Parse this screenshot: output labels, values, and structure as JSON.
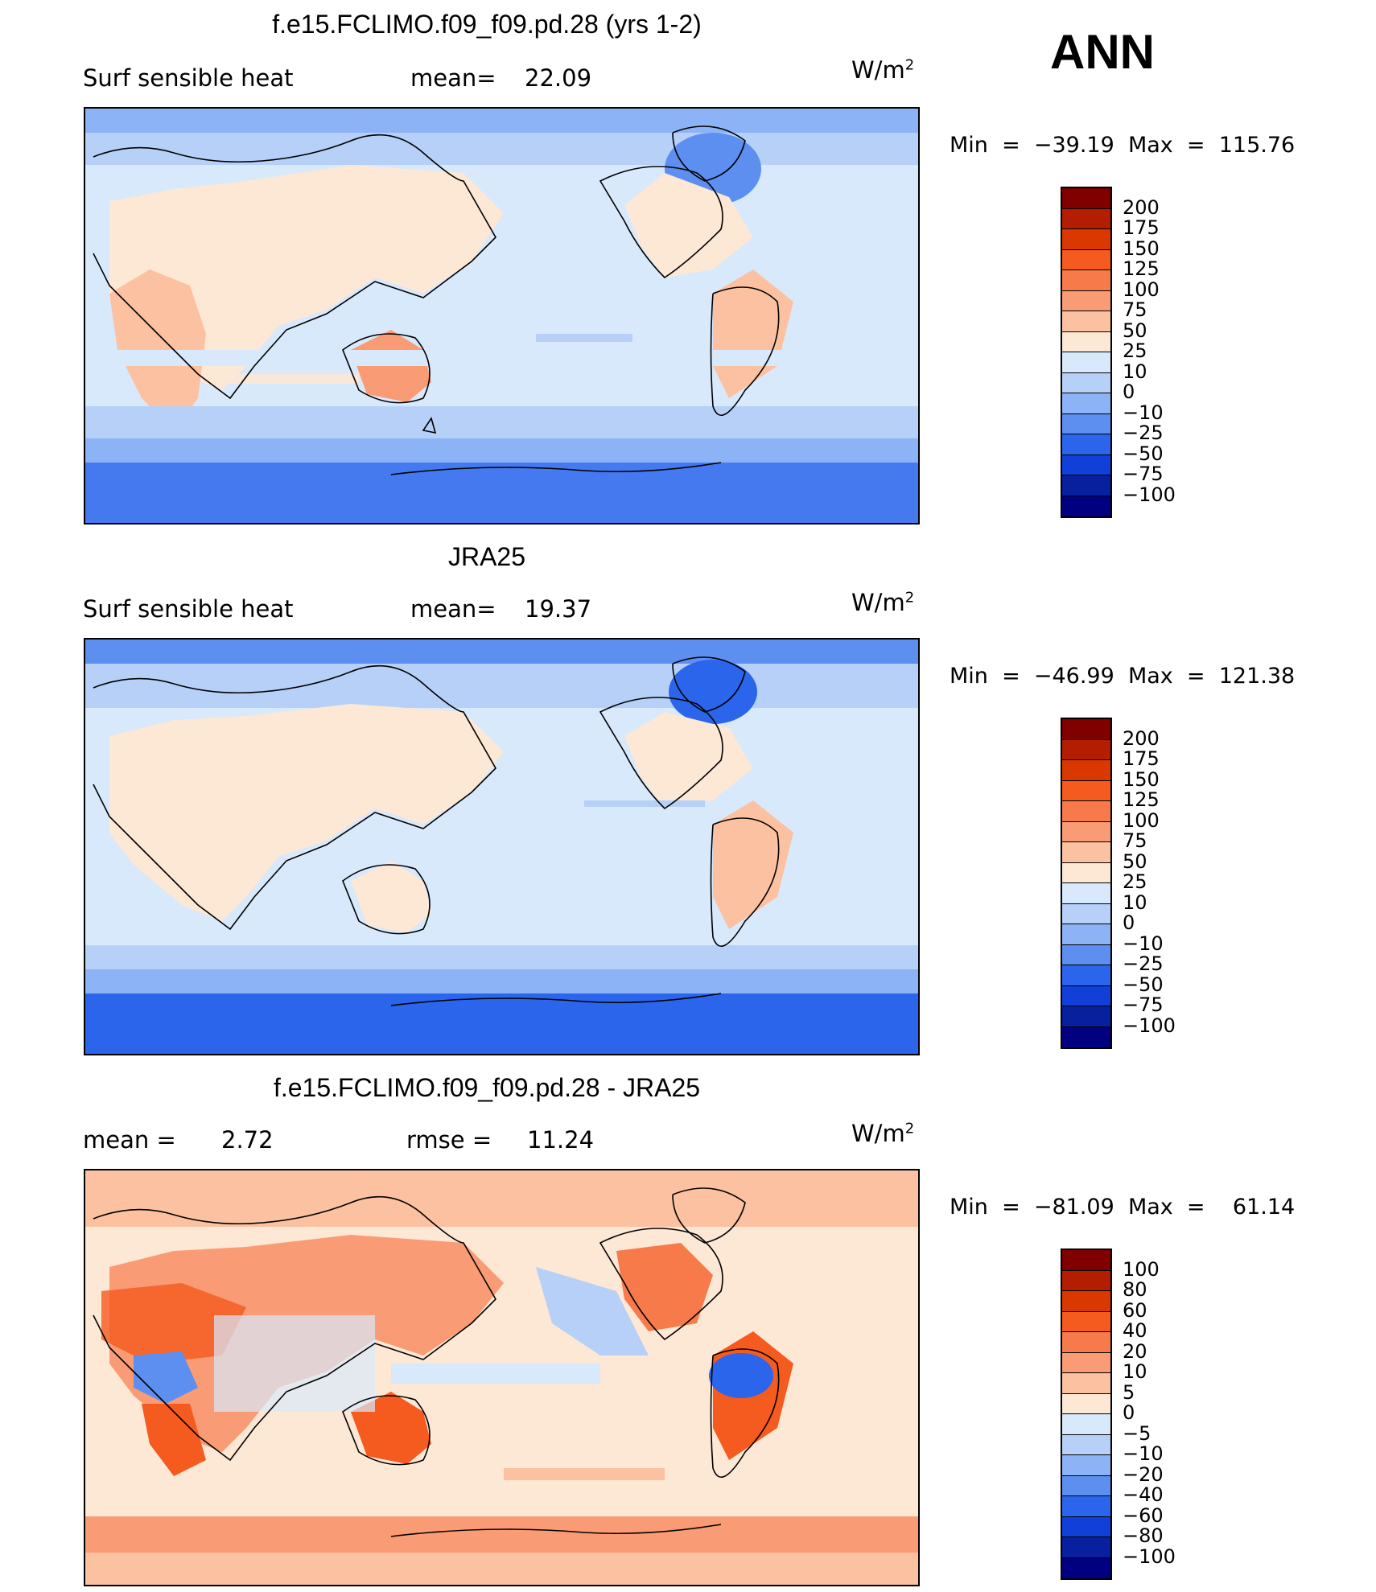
{
  "season": "ANN",
  "panels": [
    {
      "title": "f.e15.FCLIMO.f09_f09.pd.28 (yrs 1-2)",
      "left_label": "Surf  sensible  heat",
      "stat_label": "mean=",
      "stat_value": "22.09",
      "units_base": "W/m",
      "units_exp": "2",
      "minmax": "Min  =  −39.19  Max  =  115.76",
      "colorbar_labels": [
        "200",
        "175",
        "150",
        "125",
        "100",
        "75",
        "50",
        "25",
        "10",
        "0",
        "−10",
        "−25",
        "−50",
        "−75",
        "−100"
      ],
      "colorbar_colors": [
        "#800000",
        "#b31e00",
        "#d93800",
        "#f55a1e",
        "#f77b4a",
        "#f99b75",
        "#fbc1a0",
        "#fde7d5",
        "#d8e9fb",
        "#b6d0f8",
        "#8cb3f5",
        "#5c8ff0",
        "#2a65ec",
        "#1140d8",
        "#08209e",
        "#000080"
      ]
    },
    {
      "title": "JRA25",
      "left_label": "Surf  sensible  heat",
      "stat_label": "mean=",
      "stat_value": "19.37",
      "units_base": "W/m",
      "units_exp": "2",
      "minmax": "Min  =  −46.99  Max  =  121.38",
      "colorbar_labels": [
        "200",
        "175",
        "150",
        "125",
        "100",
        "75",
        "50",
        "25",
        "10",
        "0",
        "−10",
        "−25",
        "−50",
        "−75",
        "−100"
      ],
      "colorbar_colors": [
        "#800000",
        "#b31e00",
        "#d93800",
        "#f55a1e",
        "#f77b4a",
        "#f99b75",
        "#fbc1a0",
        "#fde7d5",
        "#d8e9fb",
        "#b6d0f8",
        "#8cb3f5",
        "#5c8ff0",
        "#2a65ec",
        "#1140d8",
        "#08209e",
        "#000080"
      ]
    },
    {
      "title": "f.e15.FCLIMO.f09_f09.pd.28 - JRA25",
      "left_label": "mean  =",
      "left_value": "2.72",
      "stat_label": "rmse  =",
      "stat_value": "11.24",
      "units_base": "W/m",
      "units_exp": "2",
      "minmax": "Min  =  −81.09  Max  =    61.14",
      "colorbar_labels": [
        "100",
        "80",
        "60",
        "40",
        "20",
        "10",
        "5",
        "0",
        "−5",
        "−10",
        "−20",
        "−40",
        "−60",
        "−80",
        "−100"
      ],
      "colorbar_colors": [
        "#800000",
        "#b31e00",
        "#d93800",
        "#f55a1e",
        "#f77b4a",
        "#f99b75",
        "#fbc1a0",
        "#fde7d5",
        "#d8e9fb",
        "#b6d0f8",
        "#8cb3f5",
        "#5c8ff0",
        "#2a65ec",
        "#1140d8",
        "#08209e",
        "#000080"
      ]
    }
  ]
}
